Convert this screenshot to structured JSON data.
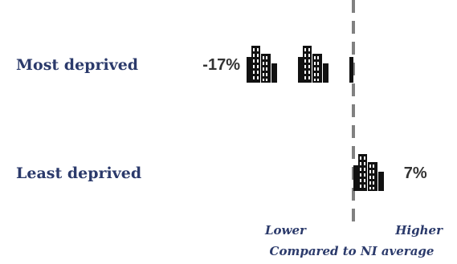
{
  "chart_data": {
    "type": "bar",
    "categories": [
      "Most deprived",
      "Least deprived"
    ],
    "values": [
      -17,
      7
    ],
    "value_labels": [
      "-17%",
      "7%"
    ],
    "unit": "%",
    "xlim": [
      -20,
      20
    ],
    "reference_line": 0,
    "xlabel_low": "Lower",
    "xlabel_high": "Higher",
    "xlabel": "Compared to NI average",
    "grid": false,
    "legend": "none"
  },
  "colors": {
    "label_text": "#2b3a6b",
    "value_text": "#333333",
    "icon": "#111111",
    "reference_line": "#808080"
  },
  "icons": [
    "city-buildings-icon"
  ]
}
